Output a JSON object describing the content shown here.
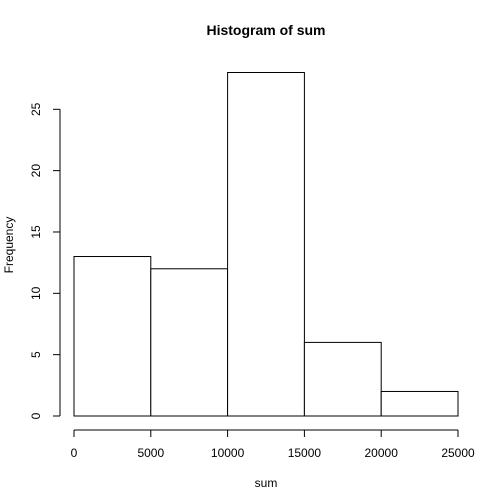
{
  "chart_data": {
    "type": "bar",
    "title": "Histogram of sum",
    "xlabel": "sum",
    "ylabel": "Frequency",
    "bins": [
      {
        "start": 0,
        "end": 5000,
        "count": 13
      },
      {
        "start": 5000,
        "end": 10000,
        "count": 12
      },
      {
        "start": 10000,
        "end": 15000,
        "count": 28
      },
      {
        "start": 15000,
        "end": 20000,
        "count": 6
      },
      {
        "start": 20000,
        "end": 25000,
        "count": 2
      }
    ],
    "xlim": [
      0,
      25000
    ],
    "ylim": [
      0,
      28
    ],
    "x_ticks": [
      "0",
      "5000",
      "10000",
      "15000",
      "20000",
      "25000"
    ],
    "y_ticks": [
      "0",
      "5",
      "10",
      "15",
      "20",
      "25"
    ],
    "grid": false,
    "legend": "none"
  }
}
